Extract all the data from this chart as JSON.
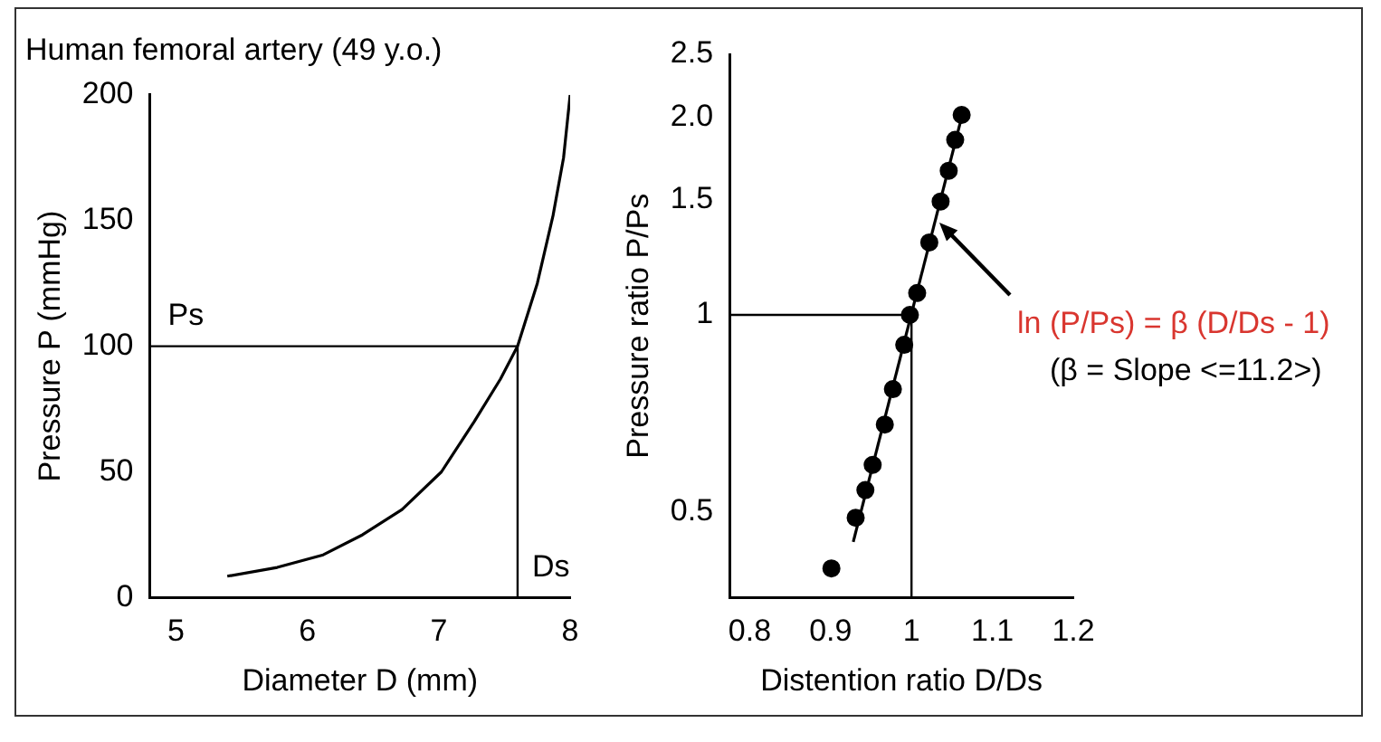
{
  "chart_data": [
    {
      "type": "line",
      "title": "Human femoral artery (49 y.o.)",
      "xlabel": "Diameter D (mm)",
      "ylabel": "Pressure P (mmHg)",
      "xlim": [
        4.8,
        8
      ],
      "xticks": [
        5,
        6,
        7,
        8
      ],
      "ylim": [
        0,
        200
      ],
      "yticks": [
        0,
        50,
        100,
        150,
        200
      ],
      "grid": false,
      "legend": false,
      "marker": "none",
      "line_style": "solid",
      "series": [
        {
          "color": "#000000",
          "x": [
            5.39,
            5.77,
            6.12,
            6.42,
            6.72,
            7.02,
            7.27,
            7.47,
            7.6,
            7.75,
            7.87,
            7.95,
            8.0
          ],
          "values": [
            8.5,
            12,
            17,
            25,
            35,
            50,
            70,
            87,
            100,
            125,
            152,
            175,
            200
          ]
        }
      ],
      "ref_lines": [
        {
          "axis": "y",
          "value": 100,
          "label": "Ps"
        },
        {
          "axis": "x",
          "value": 7.6,
          "label": "Ds"
        }
      ]
    },
    {
      "type": "scatter",
      "xlabel": "Distention ratio D/Ds",
      "ylabel": "Pressure ratio P/Ps",
      "log": "y",
      "xlim": [
        0.775,
        1.2
      ],
      "xticks": [
        0.8,
        0.9,
        1,
        1.1,
        1.2
      ],
      "ylim": [
        0.37,
        2.5
      ],
      "yticks": [
        0.5,
        1,
        1.5,
        {
          "value": 2,
          "label": "2.0"
        },
        2.5
      ],
      "grid": false,
      "legend": false,
      "marker": "circle",
      "series": [
        {
          "color": "#000000",
          "x": [
            0.901,
            0.931,
            0.943,
            0.952,
            0.967,
            0.977,
            0.991,
            0.998,
            1.007,
            1.022,
            1.036,
            1.046,
            1.054,
            1.062
          ],
          "values": [
            0.41,
            0.49,
            0.54,
            0.59,
            0.68,
            0.77,
            0.9,
            1.0,
            1.08,
            1.29,
            1.49,
            1.66,
            1.85,
            2.02
          ]
        },
        {
          "type": "line",
          "marker": "none",
          "color": "#000000",
          "x": [
            0.928,
            1.064
          ],
          "values": [
            0.45,
            2.05
          ]
        }
      ],
      "ref_lines": [
        {
          "axis": "y",
          "value": 1
        },
        {
          "axis": "x",
          "value": 1
        }
      ],
      "annotations": [
        {
          "text": "ln (P/Ps) = β (D/Ds - 1)",
          "x": 1.03,
          "y": 1.4
        },
        "(β = Slope <=11.2>)"
      ]
    }
  ]
}
